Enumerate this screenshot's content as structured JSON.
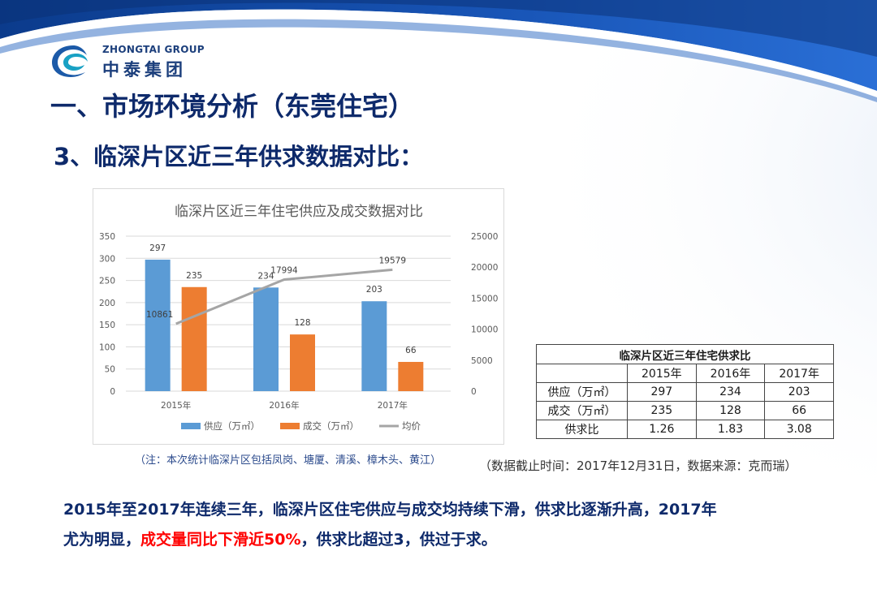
{
  "logo": {
    "en": "ZHONGTAI GROUP",
    "cn": "中泰集团"
  },
  "title_main": "一、市场环境分析（东莞住宅）",
  "title_sub": "3、临深片区近三年供求数据对比：",
  "chart_data": {
    "type": "bar",
    "title": "临深片区近三年住宅供应及成交数据对比",
    "categories": [
      "2015年",
      "2016年",
      "2017年"
    ],
    "series": [
      {
        "name": "供应（万㎡）",
        "type": "bar",
        "axis": "left",
        "values": [
          297,
          234,
          203
        ],
        "color": "#5b9bd5"
      },
      {
        "name": "成交（万㎡）",
        "type": "bar",
        "axis": "left",
        "values": [
          235,
          128,
          66
        ],
        "color": "#ed7d31"
      },
      {
        "name": "均价",
        "type": "line",
        "axis": "right",
        "values": [
          10861,
          17994,
          19579
        ],
        "color": "#a5a5a5"
      }
    ],
    "ylim_left": [
      0,
      350
    ],
    "yticks_left": [
      0,
      50,
      100,
      150,
      200,
      250,
      300,
      350
    ],
    "ylim_right": [
      0,
      25000
    ],
    "yticks_right": [
      0,
      5000,
      10000,
      15000,
      20000,
      25000
    ],
    "grid": true,
    "legend_position": "bottom"
  },
  "chart_note": "（注：本次统计临深片区包括凤岗、塘厦、清溪、樟木头、黄江）",
  "table": {
    "caption": "临深片区近三年住宅供求比",
    "headers": [
      "",
      "2015年",
      "2016年",
      "2017年"
    ],
    "rows": [
      [
        "供应（万㎡）",
        "297",
        "234",
        "203"
      ],
      [
        "成交（万㎡）",
        "235",
        "128",
        "66"
      ],
      [
        "供求比",
        "1.26",
        "1.83",
        "3.08"
      ]
    ]
  },
  "data_note": "（数据截止时间：2017年12月31日，数据来源：克而瑞）",
  "summary": {
    "line1": "2015年至2017年连续三年，临深片区住宅供应与成交均持续下滑，供求比逐渐升高，2017年",
    "line2_pre": "尤为明显，",
    "line2_highlight": "成交量同比下滑近50%",
    "line2_post": "，供求比超过3，供过于求。"
  }
}
